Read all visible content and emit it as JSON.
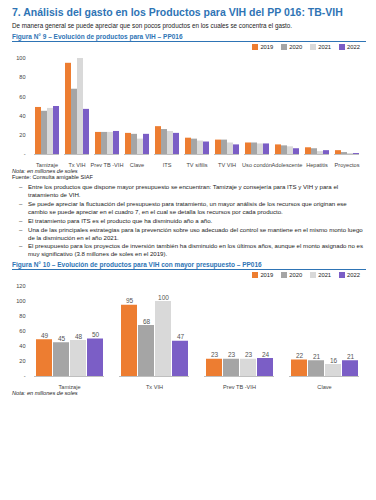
{
  "document": {
    "heading": "7.   Análisis del gasto en los Productos para VIH del PP 016: TB-VIH",
    "intro": "De manera general se puede apreciar que son pocos productos en los cuales se concentra el gasto.",
    "bullets": [
      "Entre los productos que dispone mayor presupuesto se encuentran: Tamizaje y consejería para ITS y VIH y para el tratamiento de VIH.",
      "Se puede apreciar la fluctuación del presupuesto para tratamiento, un mayor análisis de los recursos que originan ese cambio se puede apreciar en el cuadro 7, en el cual se detalla los recursos por cada producto.",
      "El tratamiento para ITS es el producto que ha disminuido año a año.",
      "Una de las principales estrategias para la prevención sobre uso adecuado del control se mantiene en el mismo monto luego de la disminución en el año 2021.",
      "El presupuesto para los proyectos de inversión también ha disminuido en los últimos años, aunque el monto asignado no es muy significativo (3.8 millones de soles en el 2019)."
    ]
  },
  "chart_data": [
    {
      "type": "bar",
      "title": "Figura N° 9 – Evolución de productos para VIH – PP016",
      "note": "Nota: en millones de soles",
      "source": "Fuente: Consulta amigable SIAF",
      "categories": [
        "Tamizaje",
        "Tx VIH",
        "Prev TB -VIH",
        "Clave",
        "ITS",
        "TV sífilis",
        "TV VIH",
        "Uso condón",
        "Adolescente",
        "Hepatitis",
        "Proyectos"
      ],
      "series": [
        {
          "name": "2019",
          "color": "#ED7D31",
          "values": [
            49,
            95,
            23,
            22,
            29,
            17,
            15,
            12,
            10,
            7,
            4
          ]
        },
        {
          "name": "2020",
          "color": "#A5A5A5",
          "values": [
            45,
            68,
            23,
            21,
            26,
            16,
            15,
            12,
            9,
            6,
            2
          ]
        },
        {
          "name": "2021",
          "color": "#D9D9D9",
          "values": [
            48,
            100,
            23,
            16,
            24,
            14,
            12,
            11,
            8,
            3,
            1
          ]
        },
        {
          "name": "2022",
          "color": "#7B5EC6",
          "values": [
            50,
            47,
            24,
            21,
            22,
            13,
            10,
            11,
            6,
            4,
            1
          ]
        }
      ],
      "ylim": [
        0,
        100
      ],
      "yticks": [
        {
          "value": 0,
          "label": "-"
        },
        20,
        40,
        60,
        80,
        100
      ],
      "grid": false,
      "legend": "top-right",
      "data_labels": false
    },
    {
      "type": "bar",
      "title": "Figura N° 10 – Evolución de productos para VIH con mayor presupuesto – PP016",
      "note": "Nota: en millones de soles",
      "categories": [
        "Tamizaje",
        "Tx VIH",
        "Prev TB -VIH",
        "Clave"
      ],
      "series": [
        {
          "name": "2019",
          "color": "#ED7D31",
          "values": [
            49,
            95,
            23,
            22
          ]
        },
        {
          "name": "2020",
          "color": "#A5A5A5",
          "values": [
            45,
            68,
            23,
            21
          ]
        },
        {
          "name": "2021",
          "color": "#D9D9D9",
          "values": [
            48,
            100,
            23,
            16
          ]
        },
        {
          "name": "2022",
          "color": "#7B5EC6",
          "values": [
            50,
            47,
            24,
            21
          ]
        }
      ],
      "ylim": [
        0,
        120
      ],
      "yticks": [
        {
          "value": 0,
          "label": "-"
        },
        20,
        40,
        60,
        80,
        100,
        120
      ],
      "grid": false,
      "legend": "top-right",
      "data_labels": true
    }
  ]
}
